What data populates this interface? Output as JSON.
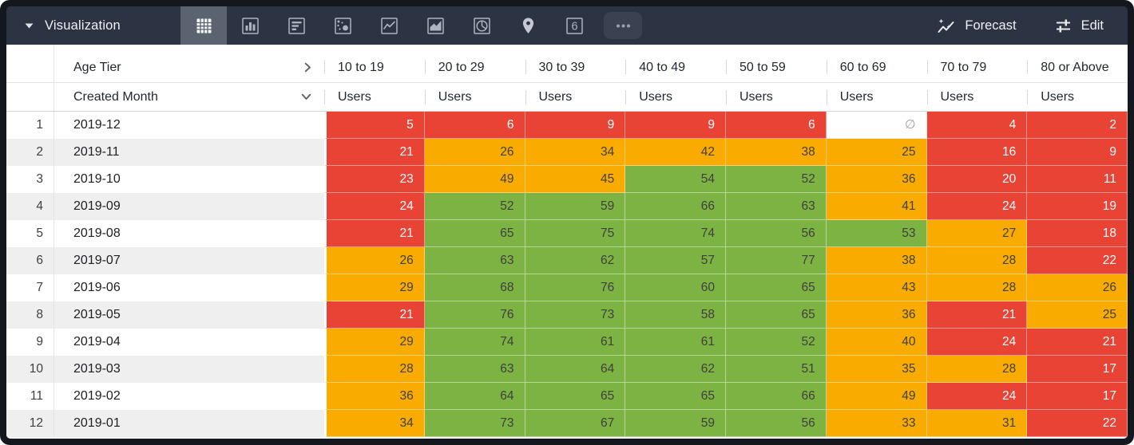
{
  "toolbar": {
    "title": "Visualization",
    "forecast_label": "Forecast",
    "edit_label": "Edit",
    "viz_types": [
      {
        "name": "table",
        "selected": true,
        "style": "plain"
      },
      {
        "name": "column-chart",
        "selected": false,
        "style": "plain"
      },
      {
        "name": "bar-chart",
        "selected": false,
        "style": "plain"
      },
      {
        "name": "scatterplot",
        "selected": false,
        "style": "plain"
      },
      {
        "name": "line-chart",
        "selected": false,
        "style": "plain"
      },
      {
        "name": "area-chart",
        "selected": false,
        "style": "plain"
      },
      {
        "name": "pie-chart",
        "selected": false,
        "style": "plain"
      },
      {
        "name": "map",
        "selected": false,
        "style": "plain"
      },
      {
        "name": "single-value",
        "selected": false,
        "style": "plain"
      },
      {
        "name": "more-options",
        "selected": false,
        "style": "raised"
      }
    ],
    "single_value_glyph": "6"
  },
  "table": {
    "pivot_field": "Age Tier",
    "row_field": "Created Month",
    "measure_label": "Users",
    "columns": [
      "10 to 19",
      "20 to 29",
      "30 to 39",
      "40 to 49",
      "50 to 59",
      "60 to 69",
      "70 to 79",
      "80 or Above"
    ],
    "null_symbol": "∅",
    "rows": [
      {
        "index": "1",
        "month": "2019-12",
        "cells": [
          {
            "v": "5",
            "c": "red"
          },
          {
            "v": "6",
            "c": "red"
          },
          {
            "v": "9",
            "c": "red"
          },
          {
            "v": "9",
            "c": "red"
          },
          {
            "v": "6",
            "c": "red"
          },
          {
            "v": "∅",
            "c": "null"
          },
          {
            "v": "4",
            "c": "red"
          },
          {
            "v": "2",
            "c": "red"
          }
        ]
      },
      {
        "index": "2",
        "month": "2019-11",
        "cells": [
          {
            "v": "21",
            "c": "red"
          },
          {
            "v": "26",
            "c": "orange"
          },
          {
            "v": "34",
            "c": "orange"
          },
          {
            "v": "42",
            "c": "orange"
          },
          {
            "v": "38",
            "c": "orange"
          },
          {
            "v": "25",
            "c": "orange"
          },
          {
            "v": "16",
            "c": "red"
          },
          {
            "v": "9",
            "c": "red"
          }
        ]
      },
      {
        "index": "3",
        "month": "2019-10",
        "cells": [
          {
            "v": "23",
            "c": "red"
          },
          {
            "v": "49",
            "c": "orange"
          },
          {
            "v": "45",
            "c": "orange"
          },
          {
            "v": "54",
            "c": "green"
          },
          {
            "v": "52",
            "c": "green"
          },
          {
            "v": "36",
            "c": "orange"
          },
          {
            "v": "20",
            "c": "red"
          },
          {
            "v": "11",
            "c": "red"
          }
        ]
      },
      {
        "index": "4",
        "month": "2019-09",
        "cells": [
          {
            "v": "24",
            "c": "red"
          },
          {
            "v": "52",
            "c": "green"
          },
          {
            "v": "59",
            "c": "green"
          },
          {
            "v": "66",
            "c": "green"
          },
          {
            "v": "63",
            "c": "green"
          },
          {
            "v": "41",
            "c": "orange"
          },
          {
            "v": "24",
            "c": "red"
          },
          {
            "v": "19",
            "c": "red"
          }
        ]
      },
      {
        "index": "5",
        "month": "2019-08",
        "cells": [
          {
            "v": "21",
            "c": "red"
          },
          {
            "v": "65",
            "c": "green"
          },
          {
            "v": "75",
            "c": "green"
          },
          {
            "v": "74",
            "c": "green"
          },
          {
            "v": "56",
            "c": "green"
          },
          {
            "v": "53",
            "c": "green"
          },
          {
            "v": "27",
            "c": "orange"
          },
          {
            "v": "18",
            "c": "red"
          }
        ]
      },
      {
        "index": "6",
        "month": "2019-07",
        "cells": [
          {
            "v": "26",
            "c": "orange"
          },
          {
            "v": "63",
            "c": "green"
          },
          {
            "v": "62",
            "c": "green"
          },
          {
            "v": "57",
            "c": "green"
          },
          {
            "v": "77",
            "c": "green"
          },
          {
            "v": "38",
            "c": "orange"
          },
          {
            "v": "28",
            "c": "orange"
          },
          {
            "v": "22",
            "c": "red"
          }
        ]
      },
      {
        "index": "7",
        "month": "2019-06",
        "cells": [
          {
            "v": "29",
            "c": "orange"
          },
          {
            "v": "68",
            "c": "green"
          },
          {
            "v": "76",
            "c": "green"
          },
          {
            "v": "60",
            "c": "green"
          },
          {
            "v": "65",
            "c": "green"
          },
          {
            "v": "43",
            "c": "orange"
          },
          {
            "v": "28",
            "c": "orange"
          },
          {
            "v": "26",
            "c": "orange"
          }
        ]
      },
      {
        "index": "8",
        "month": "2019-05",
        "cells": [
          {
            "v": "21",
            "c": "red"
          },
          {
            "v": "76",
            "c": "green"
          },
          {
            "v": "73",
            "c": "green"
          },
          {
            "v": "58",
            "c": "green"
          },
          {
            "v": "65",
            "c": "green"
          },
          {
            "v": "36",
            "c": "orange"
          },
          {
            "v": "21",
            "c": "red"
          },
          {
            "v": "25",
            "c": "orange"
          }
        ]
      },
      {
        "index": "9",
        "month": "2019-04",
        "cells": [
          {
            "v": "29",
            "c": "orange"
          },
          {
            "v": "74",
            "c": "green"
          },
          {
            "v": "61",
            "c": "green"
          },
          {
            "v": "61",
            "c": "green"
          },
          {
            "v": "52",
            "c": "green"
          },
          {
            "v": "40",
            "c": "orange"
          },
          {
            "v": "24",
            "c": "red"
          },
          {
            "v": "21",
            "c": "red"
          }
        ]
      },
      {
        "index": "10",
        "month": "2019-03",
        "cells": [
          {
            "v": "28",
            "c": "orange"
          },
          {
            "v": "63",
            "c": "green"
          },
          {
            "v": "64",
            "c": "green"
          },
          {
            "v": "62",
            "c": "green"
          },
          {
            "v": "51",
            "c": "green"
          },
          {
            "v": "35",
            "c": "orange"
          },
          {
            "v": "28",
            "c": "orange"
          },
          {
            "v": "17",
            "c": "red"
          }
        ]
      },
      {
        "index": "11",
        "month": "2019-02",
        "cells": [
          {
            "v": "36",
            "c": "orange"
          },
          {
            "v": "64",
            "c": "green"
          },
          {
            "v": "65",
            "c": "green"
          },
          {
            "v": "65",
            "c": "green"
          },
          {
            "v": "66",
            "c": "green"
          },
          {
            "v": "49",
            "c": "orange"
          },
          {
            "v": "24",
            "c": "red"
          },
          {
            "v": "17",
            "c": "red"
          }
        ]
      },
      {
        "index": "12",
        "month": "2019-01",
        "cells": [
          {
            "v": "34",
            "c": "orange"
          },
          {
            "v": "73",
            "c": "green"
          },
          {
            "v": "67",
            "c": "green"
          },
          {
            "v": "59",
            "c": "green"
          },
          {
            "v": "56",
            "c": "green"
          },
          {
            "v": "33",
            "c": "orange"
          },
          {
            "v": "31",
            "c": "orange"
          },
          {
            "v": "22",
            "c": "red"
          }
        ]
      }
    ]
  },
  "colors": {
    "heat_red": "#e94335",
    "heat_orange": "#f9ab00",
    "heat_green": "#7cb342",
    "toolbar_bg": "#2c3342",
    "frame": "#14171d",
    "selected_tool_bg": "#5b6370",
    "zebra": "#efefef"
  }
}
